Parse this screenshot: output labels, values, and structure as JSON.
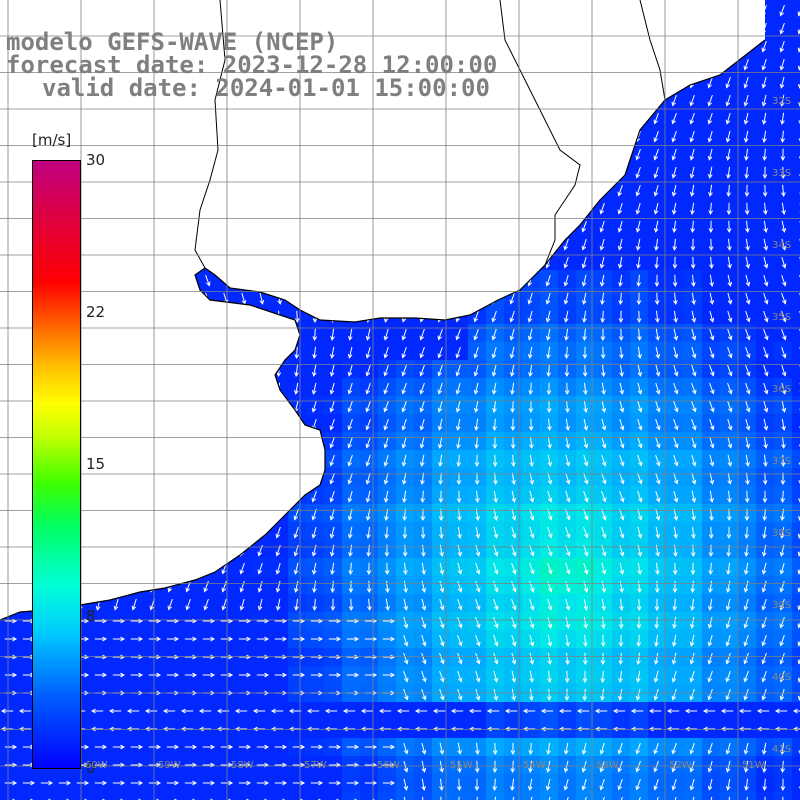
{
  "titles": {
    "line1": "modelo GEFS-WAVE (NCEP)",
    "line2": "forecast date: 2023-12-28 12:00:00",
    "line3": "valid date: 2024-01-01 15:00:00"
  },
  "colorbar": {
    "units": "[m/s]",
    "ticks": [
      "30",
      "22",
      "15",
      "8",
      "0"
    ],
    "colors": [
      "#0000ff",
      "#00c8ff",
      "#00ffd8",
      "#00ff60",
      "#ffff00",
      "#ff0000",
      "#c00080"
    ]
  },
  "map_labels": {
    "lat": [
      "32S",
      "33S",
      "34S",
      "35S",
      "36S",
      "37S",
      "38S",
      "39S",
      "40S",
      "41S"
    ],
    "lon": [
      "60W",
      "59W",
      "58W",
      "57W",
      "56W",
      "55W",
      "54W",
      "53W",
      "52W",
      "51W"
    ]
  },
  "colors": {
    "land": "#ffffff",
    "coast": "#000000",
    "grid": "#808080",
    "arrows": "#ffffff"
  }
}
